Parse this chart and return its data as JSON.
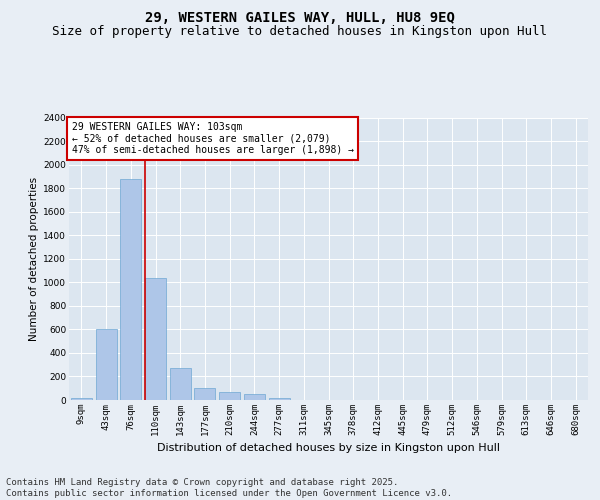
{
  "title": "29, WESTERN GAILES WAY, HULL, HU8 9EQ",
  "subtitle": "Size of property relative to detached houses in Kingston upon Hull",
  "xlabel": "Distribution of detached houses by size in Kingston upon Hull",
  "ylabel": "Number of detached properties",
  "categories": [
    "9sqm",
    "43sqm",
    "76sqm",
    "110sqm",
    "143sqm",
    "177sqm",
    "210sqm",
    "244sqm",
    "277sqm",
    "311sqm",
    "345sqm",
    "378sqm",
    "412sqm",
    "445sqm",
    "479sqm",
    "512sqm",
    "546sqm",
    "579sqm",
    "613sqm",
    "646sqm",
    "680sqm"
  ],
  "values": [
    20,
    600,
    1880,
    1040,
    270,
    100,
    65,
    55,
    20,
    0,
    0,
    0,
    0,
    0,
    0,
    0,
    0,
    0,
    0,
    0,
    0
  ],
  "bar_color": "#aec6e8",
  "bar_edge_color": "#6fa8d4",
  "vline_color": "#cc0000",
  "vline_pos": 2.57,
  "ylim": [
    0,
    2400
  ],
  "yticks": [
    0,
    200,
    400,
    600,
    800,
    1000,
    1200,
    1400,
    1600,
    1800,
    2000,
    2200,
    2400
  ],
  "annotation_text": "29 WESTERN GAILES WAY: 103sqm\n← 52% of detached houses are smaller (2,079)\n47% of semi-detached houses are larger (1,898) →",
  "annotation_box_color": "#ffffff",
  "annotation_box_edge": "#cc0000",
  "bg_color": "#e8eef5",
  "plot_bg_color": "#dce6f0",
  "grid_color": "#ffffff",
  "footer_text": "Contains HM Land Registry data © Crown copyright and database right 2025.\nContains public sector information licensed under the Open Government Licence v3.0.",
  "title_fontsize": 10,
  "subtitle_fontsize": 9,
  "xlabel_fontsize": 8,
  "ylabel_fontsize": 7.5,
  "tick_fontsize": 6.5,
  "annotation_fontsize": 7,
  "footer_fontsize": 6.5
}
